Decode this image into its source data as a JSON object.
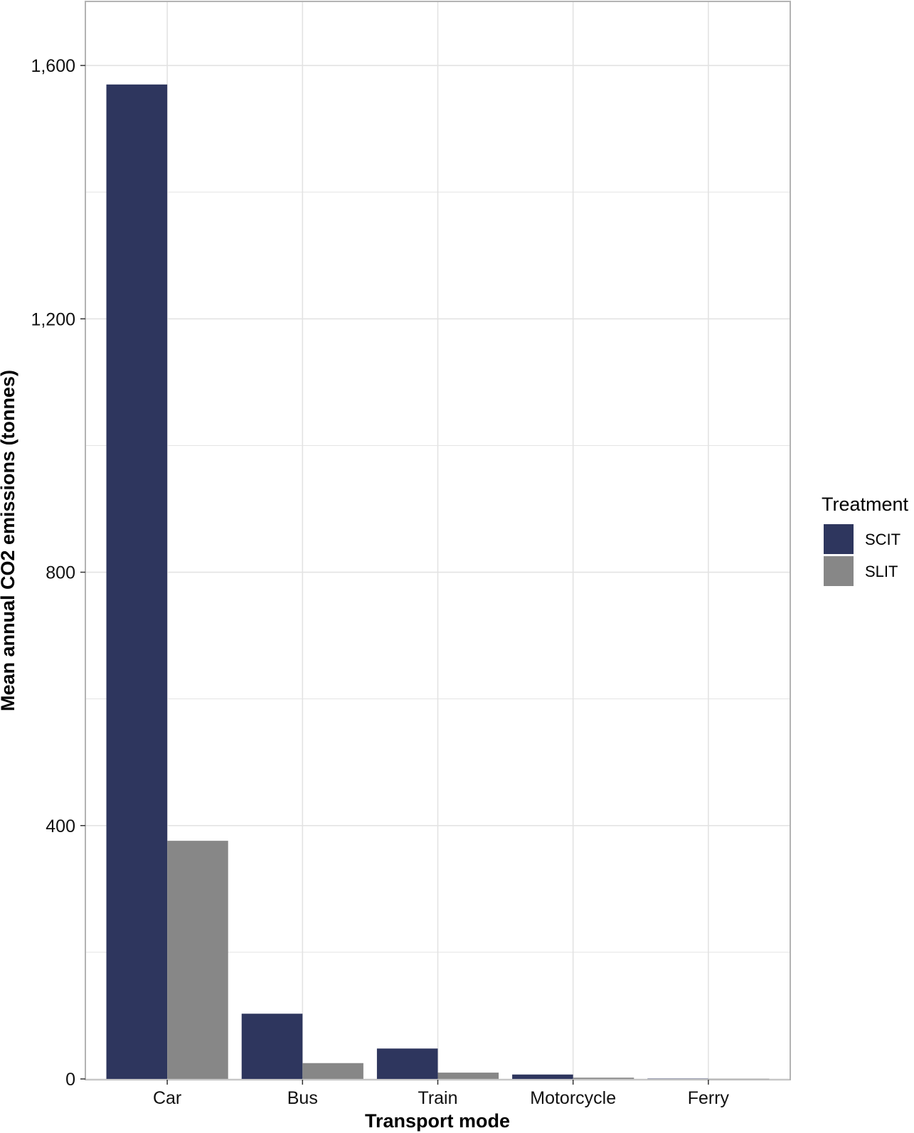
{
  "chart_data": {
    "type": "bar",
    "categories": [
      "Car",
      "Bus",
      "Train",
      "Motorcycle",
      "Ferry"
    ],
    "series": [
      {
        "name": "SCIT",
        "color": "#2e365e",
        "values": [
          1570,
          103,
          48,
          7,
          0.5
        ]
      },
      {
        "name": "SLIT",
        "color": "#878787",
        "values": [
          376,
          25,
          10,
          2,
          0.3
        ]
      }
    ],
    "title": "",
    "xlabel": "Transport mode",
    "ylabel": "Mean annual CO2 emissions (tonnes)",
    "ylim": [
      0,
      1700
    ],
    "yticks": [
      0,
      400,
      800,
      1200,
      1600
    ],
    "ytick_labels": [
      "0",
      "400",
      "800",
      "1,200",
      "1,600"
    ],
    "grid": true,
    "legend": {
      "title": "Treatment",
      "position": "right"
    }
  }
}
